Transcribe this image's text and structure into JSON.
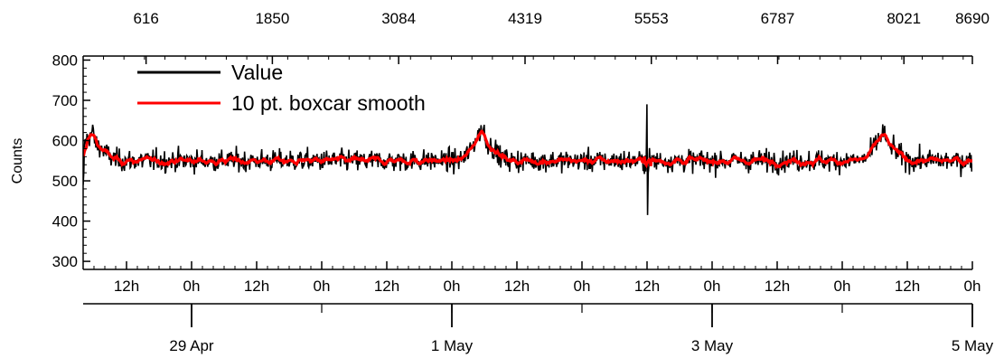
{
  "chart_data": {
    "type": "line",
    "title": "",
    "ylabel": "Counts",
    "ylim": [
      280,
      810
    ],
    "yticks": [
      300,
      400,
      500,
      600,
      700,
      800
    ],
    "x_time": {
      "start": "2025-04-28 04:00",
      "end": "2025-05-05 00:00",
      "hour_ticks": [
        "12h",
        "0h",
        "12h",
        "0h",
        "12h",
        "0h",
        "12h",
        "0h",
        "12h",
        "0h",
        "12h",
        "0h",
        "12h",
        "0h"
      ],
      "date_ticks": [
        "29 Apr",
        "1 May",
        "3 May",
        "5 May"
      ]
    },
    "top_axis": {
      "range": [
        1,
        8690
      ],
      "tick_labels": [
        "616",
        "1850",
        "3084",
        "4319",
        "5553",
        "6787",
        "8021",
        "8690"
      ]
    },
    "legend": {
      "placement": "top-left"
    },
    "series": [
      {
        "name": "Value",
        "color": "#000000",
        "mean": 550,
        "noise_band": [
          490,
          610
        ],
        "min": 415,
        "max": 690
      },
      {
        "name": "10 pt. boxcar smooth",
        "color": "#ff0000",
        "mean": 550,
        "band": [
          520,
          600
        ]
      }
    ],
    "features": [
      {
        "x": "2025-04-28 06:00",
        "label": "spike",
        "value": 640
      },
      {
        "x": "2025-05-01 06:00",
        "label": "spike",
        "value": 650
      },
      {
        "x": "2025-05-02 12:00",
        "label": "outlier",
        "value_max": 690,
        "value_min": 415
      },
      {
        "x": "2025-05-04 08:00",
        "label": "spike",
        "value": 640
      }
    ]
  }
}
